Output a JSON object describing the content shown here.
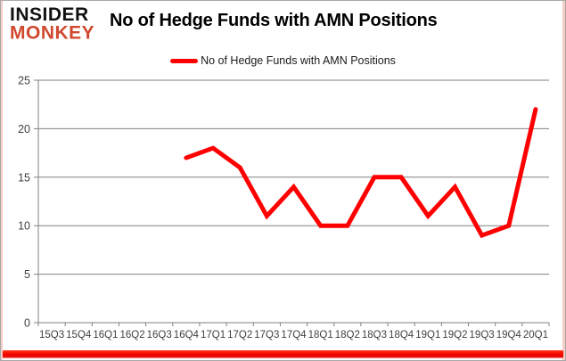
{
  "header": {
    "logo": {
      "line1": "INSIDER",
      "line2": "MONKEY",
      "line1_color": "#111111",
      "line2_color": "#d0492f"
    },
    "title": "No of Hedge Funds with AMN Positions"
  },
  "legend": {
    "label": "No of Hedge Funds with AMN Positions",
    "swatch_color": "#ff0000"
  },
  "chart_data": {
    "type": "line",
    "title": "No of Hedge Funds with AMN Positions",
    "categories": [
      "15Q3",
      "15Q4",
      "16Q1",
      "16Q2",
      "16Q3",
      "16Q4",
      "17Q1",
      "17Q2",
      "17Q3",
      "17Q4",
      "18Q1",
      "18Q2",
      "18Q3",
      "18Q4",
      "19Q1",
      "19Q2",
      "19Q3",
      "19Q4",
      "20Q1"
    ],
    "series": [
      {
        "name": "No of Hedge Funds with AMN Positions",
        "color": "#ff0000",
        "values": [
          null,
          null,
          null,
          null,
          null,
          17,
          18,
          16,
          11,
          14,
          10,
          10,
          15,
          15,
          11,
          14,
          9,
          10,
          22
        ]
      }
    ],
    "xlabel": "",
    "ylabel": "",
    "ylim": [
      0,
      25
    ],
    "yticks": [
      0,
      5,
      10,
      15,
      20,
      25
    ],
    "grid": true,
    "legend_position": "top-center",
    "axis_color": "#808080",
    "tick_label_color": "#3f3f3f",
    "line_width": 5
  },
  "frame": {
    "border_color": "#a8a8a8",
    "bottom_bar_color": "#f20d00"
  }
}
